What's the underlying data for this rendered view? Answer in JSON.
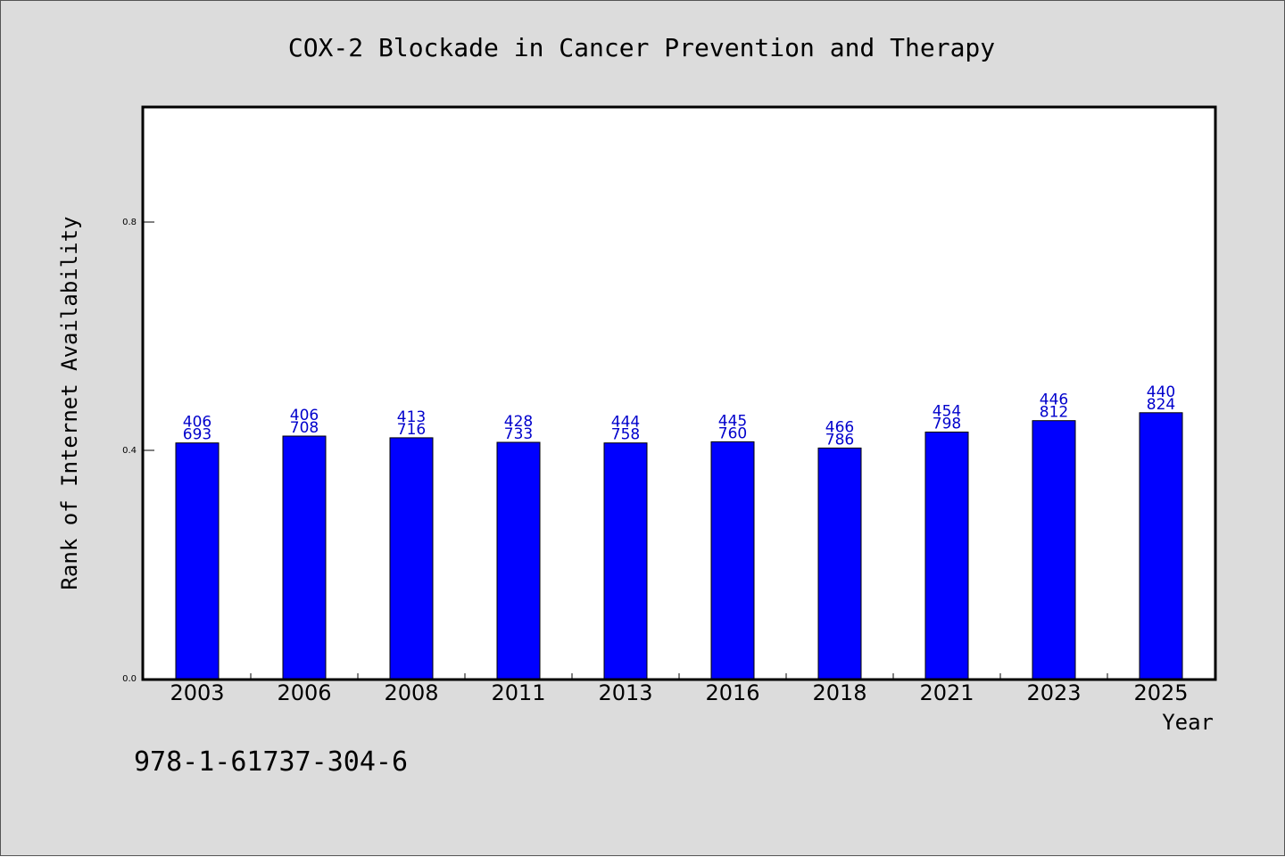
{
  "chart_data": {
    "type": "bar",
    "title": "COX-2 Blockade in Cancer Prevention and Therapy",
    "xlabel": "Year",
    "ylabel": "Rank of Internet Availability",
    "categories": [
      "2003",
      "2006",
      "2008",
      "2011",
      "2013",
      "2016",
      "2018",
      "2021",
      "2023",
      "2025"
    ],
    "values": [
      0.413,
      0.425,
      0.422,
      0.414,
      0.413,
      0.415,
      0.404,
      0.432,
      0.452,
      0.466
    ],
    "bar_labels_top": [
      "406",
      "406",
      "413",
      "428",
      "444",
      "445",
      "466",
      "454",
      "446",
      "440"
    ],
    "bar_labels_bottom": [
      "693",
      "708",
      "716",
      "733",
      "758",
      "760",
      "786",
      "798",
      "812",
      "824"
    ],
    "yticks": [
      0.0,
      0.4,
      0.8
    ],
    "ytick_labels": [
      "0.0",
      "0.4",
      "0.8"
    ],
    "ylim": [
      0.0,
      1.0
    ],
    "grid": false,
    "bar_color": "#0000ff",
    "label_color": "#0000cc",
    "background_color": "#dcdcdc",
    "plot_background_color": "#ffffff"
  },
  "footer": {
    "isbn": "978-1-61737-304-6"
  }
}
